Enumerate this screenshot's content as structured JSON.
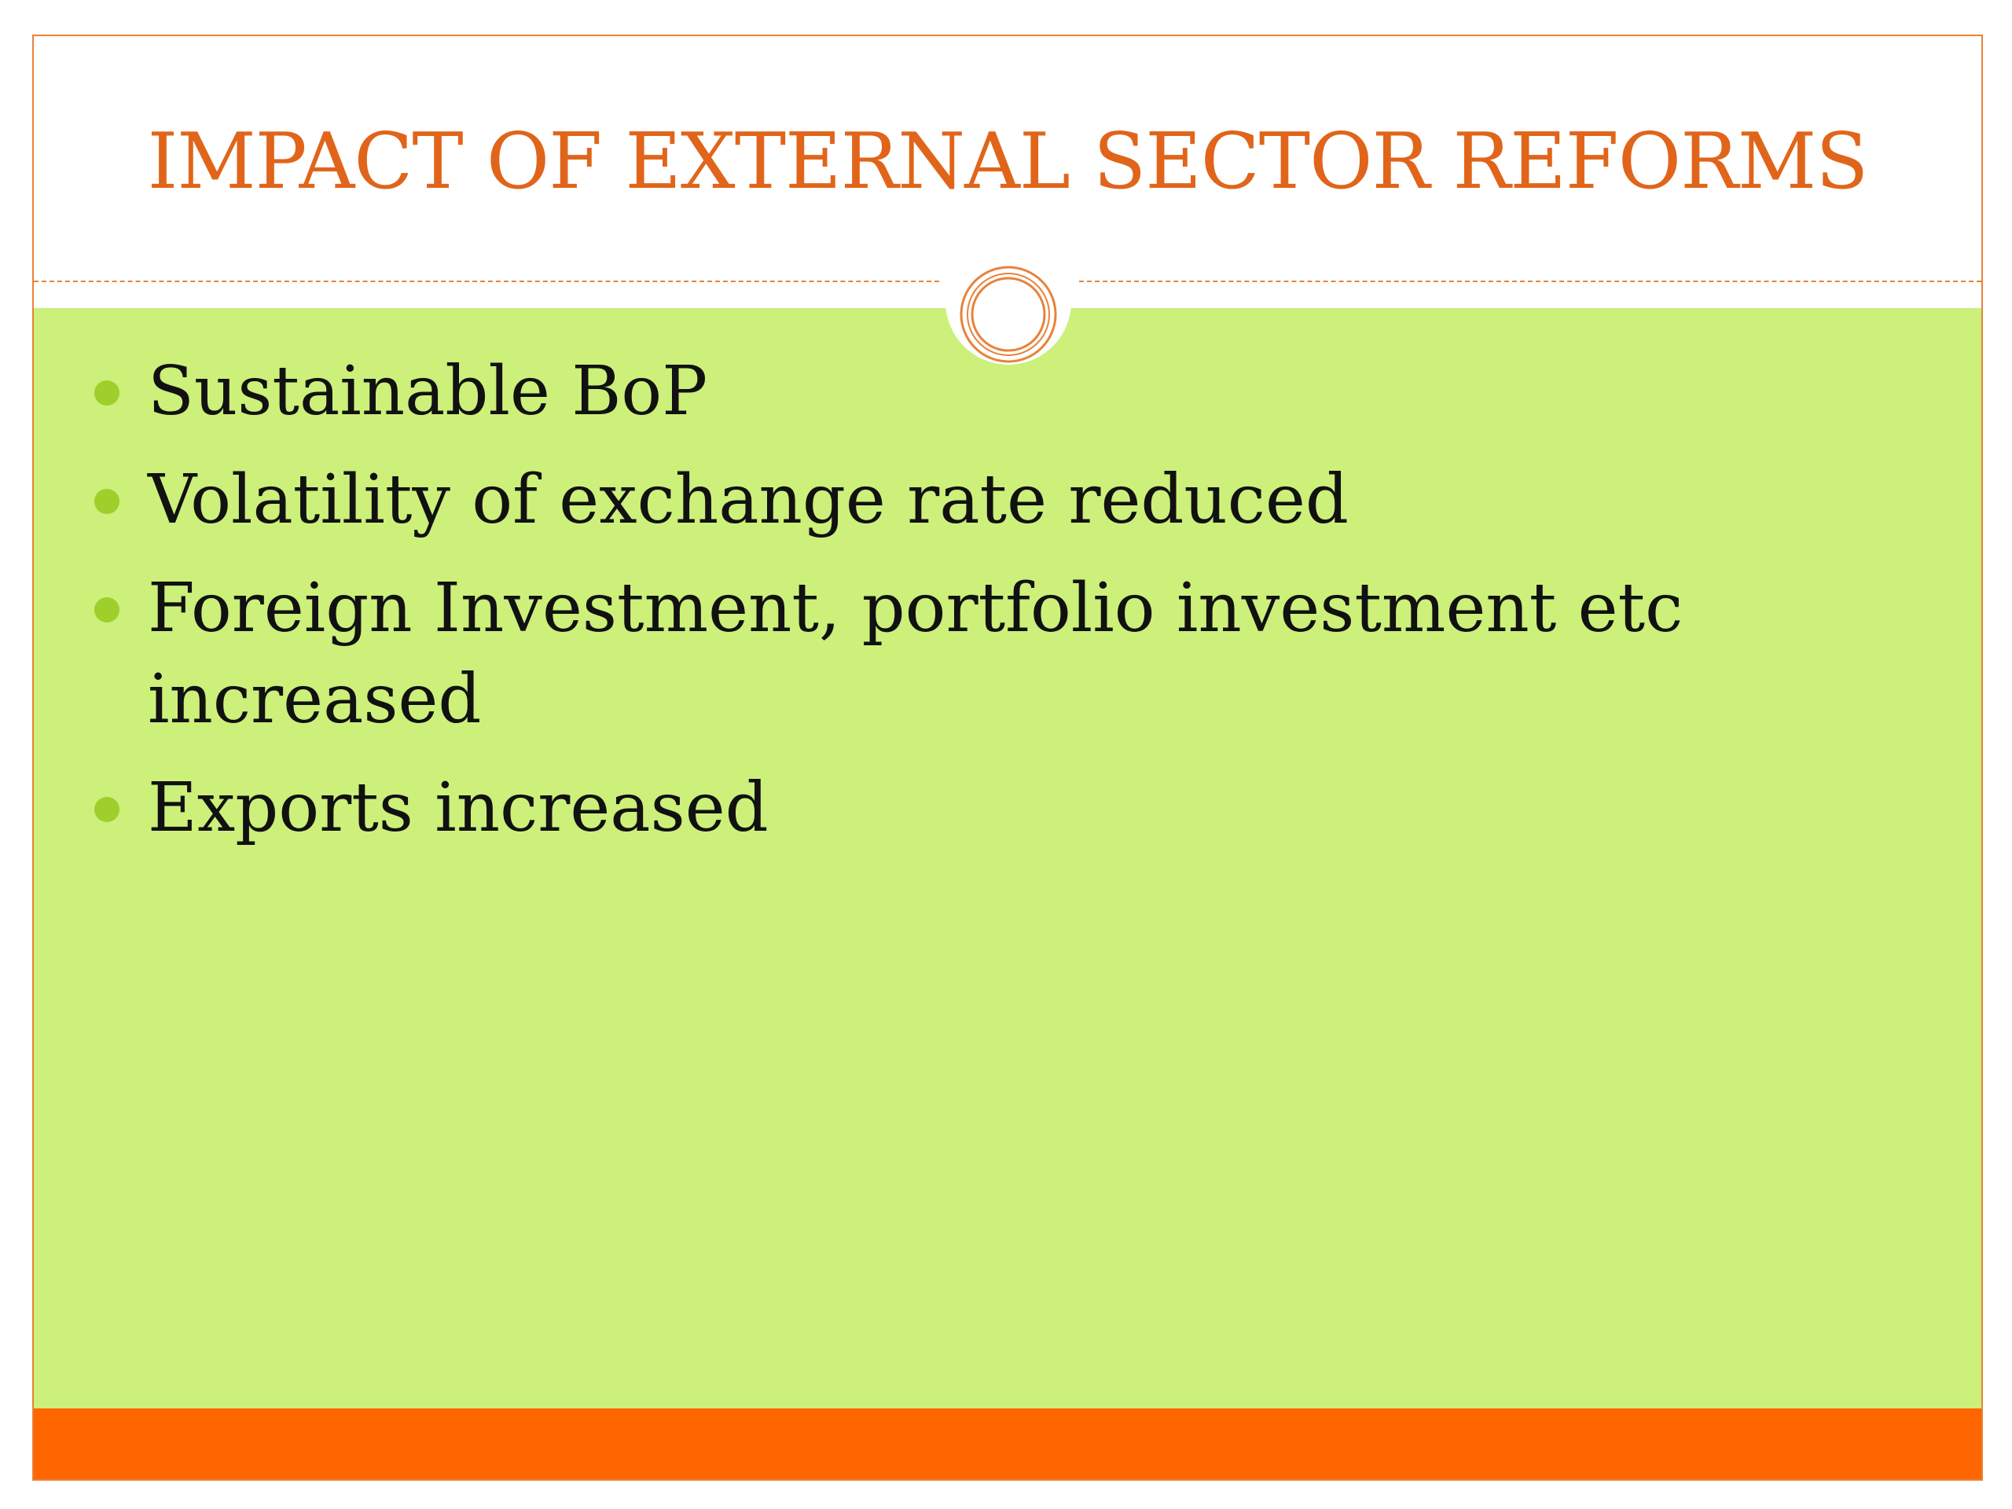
{
  "slide": {
    "title": "IMPACT OF EXTERNAL SECTOR REFORMS",
    "bullets": [
      "Sustainable BoP",
      "Volatility of exchange rate reduced",
      "Foreign Investment, portfolio investment etc increased",
      "Exports increased"
    ]
  },
  "colors": {
    "title": "#e0651a",
    "body_background": "#ccf07a",
    "bullet": "#9ecf2a",
    "footer_bar": "#ff6600",
    "accent_line": "#e8823a"
  },
  "icons": {
    "ornament": "double-ring-circle-icon",
    "bullet": "filled-circle-bullet-icon"
  }
}
